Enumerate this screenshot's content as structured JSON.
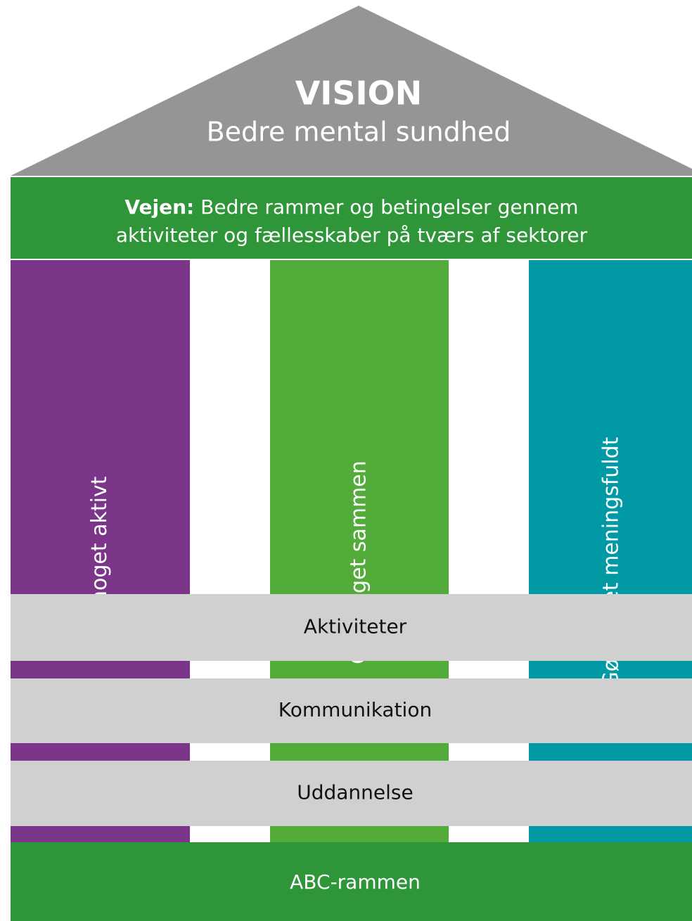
{
  "roof": {
    "title": "VISION",
    "subtitle": "Bedre mental sundhed"
  },
  "road": {
    "label": "Vejen:",
    "lines": [
      "Bedre rammer og betingelser gennem",
      "aktiviteter og fællesskaber på tværs af sektorer"
    ]
  },
  "pillars": [
    "Gør noget aktivt",
    "Gør noget sammen",
    "Gør noget meningsfuldt"
  ],
  "layers": [
    "Aktiviteter",
    "Kommunikation",
    "Uddannelse"
  ],
  "foundation": "ABC-rammen"
}
